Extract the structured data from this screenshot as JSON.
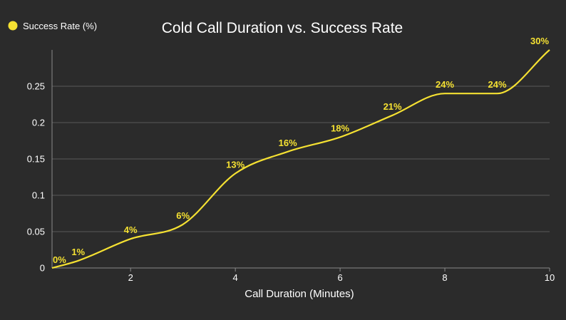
{
  "chart_data": {
    "type": "line",
    "title": "Cold Call Duration vs. Success Rate",
    "xlabel": "Call Duration (Minutes)",
    "ylabel": "",
    "legend_position": "top-left",
    "grid": true,
    "xlim": [
      0.5,
      10
    ],
    "ylim": [
      0,
      0.3
    ],
    "x_ticks": [
      2,
      4,
      6,
      8,
      10
    ],
    "y_ticks": [
      0,
      0.05,
      0.1,
      0.15,
      0.2,
      0.25
    ],
    "x_tick_labels": [
      "2",
      "4",
      "6",
      "8",
      "10"
    ],
    "y_tick_labels": [
      "0",
      "0.05",
      "0.1",
      "0.15",
      "0.2",
      "0.25"
    ],
    "series": [
      {
        "name": "Success Rate (%)",
        "color": "#f5e132",
        "x": [
          0.5,
          1,
          2,
          3,
          4,
          5,
          6,
          7,
          8,
          9,
          10
        ],
        "values": [
          0.0,
          0.01,
          0.04,
          0.06,
          0.13,
          0.16,
          0.18,
          0.21,
          0.24,
          0.24,
          0.3
        ],
        "labels": [
          "0%",
          "1%",
          "4%",
          "6%",
          "13%",
          "16%",
          "18%",
          "21%",
          "24%",
          "24%",
          "30%"
        ]
      }
    ]
  },
  "colors": {
    "background": "#2b2b2b",
    "text": "#ffffff",
    "grid": "#5a5a5a",
    "axis": "#8a8a8a",
    "accent": "#f5e132"
  }
}
